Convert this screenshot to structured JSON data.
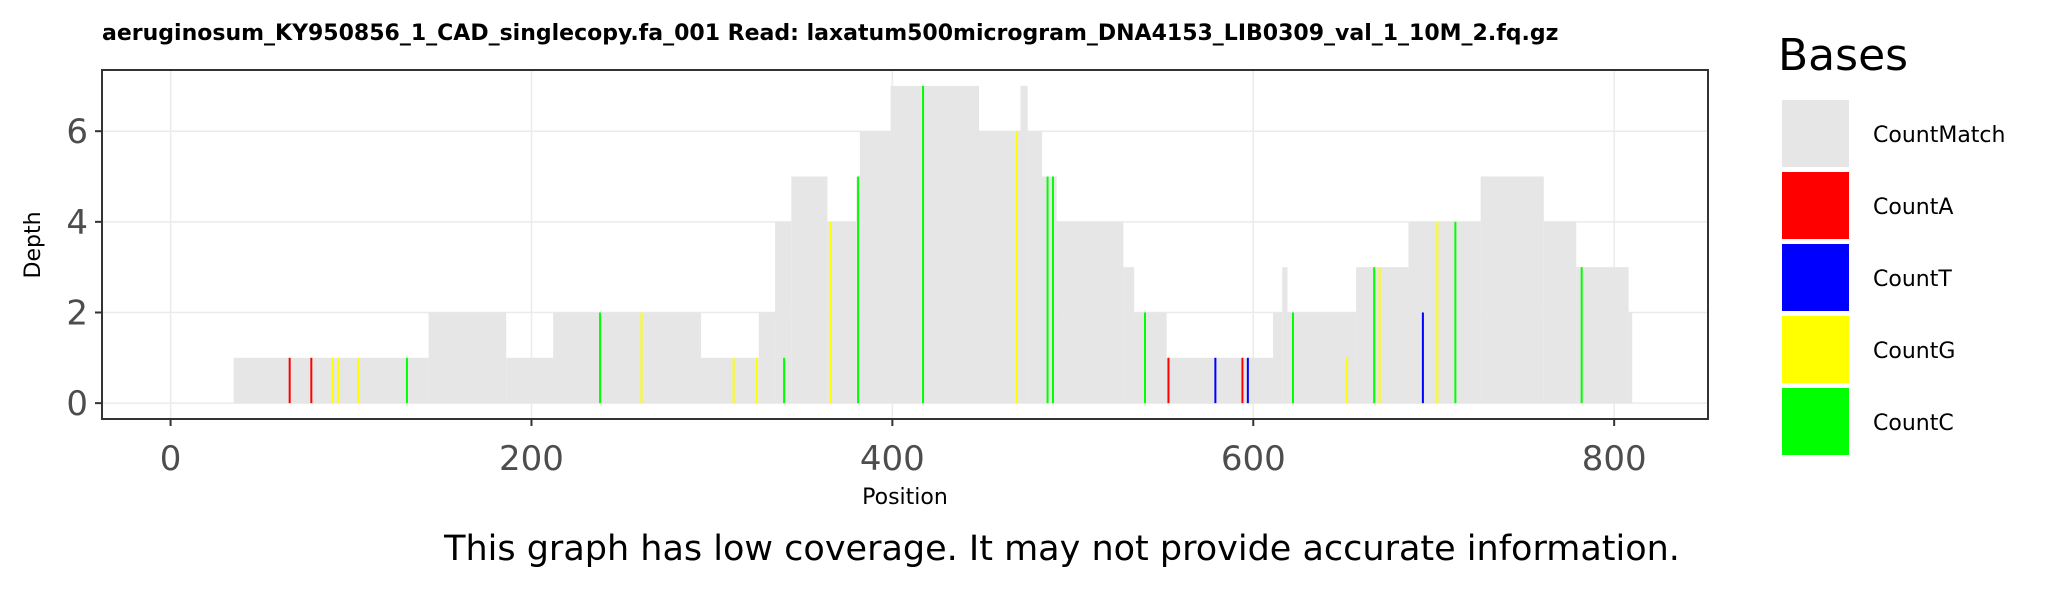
{
  "chart_data": {
    "type": "bar",
    "title": "aeruginosum_KY950856_1_CAD_singlecopy.fa_001    Read: laxatum500microgram_DNA4153_LIB0309_val_1_10M_2.fq.gz",
    "xlabel": "Position",
    "ylabel": "Depth",
    "xlim": [
      -38,
      852
    ],
    "ylim": [
      -0.35,
      7.35
    ],
    "x_ticks": [
      0,
      200,
      400,
      600,
      800
    ],
    "y_ticks": [
      0,
      2,
      4,
      6
    ],
    "grid": true,
    "legend": {
      "title": "Bases",
      "position": "right",
      "entries": [
        {
          "name": "CountMatch",
          "color": "#e6e6e6"
        },
        {
          "name": "CountA",
          "color": "#ff0000"
        },
        {
          "name": "CountT",
          "color": "#0000ff"
        },
        {
          "name": "CountG",
          "color": "#ffff00"
        },
        {
          "name": "CountC",
          "color": "#00ff00"
        }
      ]
    },
    "coverage": [
      {
        "start": 35,
        "end": 143,
        "depth": 1
      },
      {
        "start": 143,
        "end": 186,
        "depth": 2
      },
      {
        "start": 186,
        "end": 212,
        "depth": 1
      },
      {
        "start": 212,
        "end": 294,
        "depth": 2
      },
      {
        "start": 294,
        "end": 326,
        "depth": 1
      },
      {
        "start": 326,
        "end": 335,
        "depth": 2
      },
      {
        "start": 335,
        "end": 344,
        "depth": 4
      },
      {
        "start": 344,
        "end": 364,
        "depth": 5
      },
      {
        "start": 364,
        "end": 380,
        "depth": 4
      },
      {
        "start": 380,
        "end": 382,
        "depth": 5
      },
      {
        "start": 382,
        "end": 399,
        "depth": 6
      },
      {
        "start": 399,
        "end": 417,
        "depth": 7
      },
      {
        "start": 417,
        "end": 448,
        "depth": 7
      },
      {
        "start": 448,
        "end": 471,
        "depth": 6
      },
      {
        "start": 471,
        "end": 475,
        "depth": 7
      },
      {
        "start": 475,
        "end": 483,
        "depth": 6
      },
      {
        "start": 483,
        "end": 491,
        "depth": 5
      },
      {
        "start": 491,
        "end": 528,
        "depth": 4
      },
      {
        "start": 528,
        "end": 534,
        "depth": 3
      },
      {
        "start": 534,
        "end": 552,
        "depth": 2
      },
      {
        "start": 552,
        "end": 611,
        "depth": 1
      },
      {
        "start": 611,
        "end": 616,
        "depth": 2
      },
      {
        "start": 616,
        "end": 619,
        "depth": 3
      },
      {
        "start": 619,
        "end": 657,
        "depth": 2
      },
      {
        "start": 657,
        "end": 686,
        "depth": 3
      },
      {
        "start": 686,
        "end": 726,
        "depth": 4
      },
      {
        "start": 726,
        "end": 761,
        "depth": 5
      },
      {
        "start": 761,
        "end": 779,
        "depth": 4
      },
      {
        "start": 779,
        "end": 808,
        "depth": 3
      },
      {
        "start": 808,
        "end": 810,
        "depth": 2
      }
    ],
    "mismatches": [
      {
        "base": "A",
        "position": 66,
        "depth": 1
      },
      {
        "base": "A",
        "position": 78,
        "depth": 1
      },
      {
        "base": "G",
        "position": 90,
        "depth": 1
      },
      {
        "base": "G",
        "position": 93,
        "depth": 1
      },
      {
        "base": "G",
        "position": 104,
        "depth": 1
      },
      {
        "base": "C",
        "position": 131,
        "depth": 1
      },
      {
        "base": "C",
        "position": 238,
        "depth": 2
      },
      {
        "base": "G",
        "position": 261,
        "depth": 2
      },
      {
        "base": "G",
        "position": 312,
        "depth": 1
      },
      {
        "base": "G",
        "position": 325,
        "depth": 1
      },
      {
        "base": "C",
        "position": 340,
        "depth": 1
      },
      {
        "base": "G",
        "position": 366,
        "depth": 4
      },
      {
        "base": "C",
        "position": 381,
        "depth": 5
      },
      {
        "base": "C",
        "position": 417,
        "depth": 7
      },
      {
        "base": "G",
        "position": 469,
        "depth": 6
      },
      {
        "base": "C",
        "position": 486,
        "depth": 5
      },
      {
        "base": "C",
        "position": 489,
        "depth": 5
      },
      {
        "base": "C",
        "position": 540,
        "depth": 2
      },
      {
        "base": "A",
        "position": 553,
        "depth": 1
      },
      {
        "base": "T",
        "position": 579,
        "depth": 1
      },
      {
        "base": "A",
        "position": 594,
        "depth": 1
      },
      {
        "base": "T",
        "position": 597,
        "depth": 1
      },
      {
        "base": "C",
        "position": 622,
        "depth": 2
      },
      {
        "base": "G",
        "position": 652,
        "depth": 1
      },
      {
        "base": "C",
        "position": 667,
        "depth": 3
      },
      {
        "base": "G",
        "position": 670,
        "depth": 3
      },
      {
        "base": "T",
        "position": 694,
        "depth": 2
      },
      {
        "base": "G",
        "position": 702,
        "depth": 4
      },
      {
        "base": "C",
        "position": 712,
        "depth": 4
      },
      {
        "base": "C",
        "position": 782,
        "depth": 3
      }
    ]
  },
  "caption": "This graph has low coverage. It may not provide accurate information."
}
